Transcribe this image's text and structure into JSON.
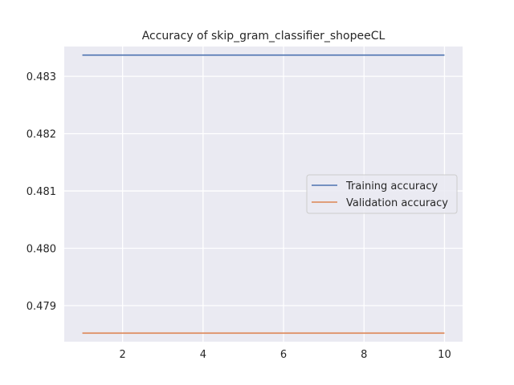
{
  "chart_data": {
    "type": "line",
    "title": "Accuracy of skip_gram_classifier_shopeeCL",
    "xlabel": "",
    "ylabel": "",
    "xlim": [
      0.55,
      10.45
    ],
    "ylim": [
      0.47837,
      0.48352
    ],
    "x_ticks": [
      2,
      4,
      6,
      8,
      10
    ],
    "y_ticks": [
      0.479,
      0.48,
      0.481,
      0.482,
      0.483
    ],
    "y_tick_labels": [
      "0.479",
      "0.480",
      "0.481",
      "0.482",
      "0.483"
    ],
    "x_tick_labels": [
      "2",
      "4",
      "6",
      "8",
      "10"
    ],
    "grid": true,
    "legend_position": "center-right",
    "series": [
      {
        "name": "Training accuracy",
        "color": "#4c72b0",
        "x": [
          1,
          2,
          3,
          4,
          5,
          6,
          7,
          8,
          9,
          10
        ],
        "values": [
          0.48337,
          0.48337,
          0.48337,
          0.48337,
          0.48337,
          0.48337,
          0.48337,
          0.48337,
          0.48337,
          0.48337
        ]
      },
      {
        "name": "Validation accuracy",
        "color": "#dd8452",
        "x": [
          1,
          2,
          3,
          4,
          5,
          6,
          7,
          8,
          9,
          10
        ],
        "values": [
          0.47852,
          0.47852,
          0.47852,
          0.47852,
          0.47852,
          0.47852,
          0.47852,
          0.47852,
          0.47852,
          0.47852
        ]
      }
    ]
  }
}
